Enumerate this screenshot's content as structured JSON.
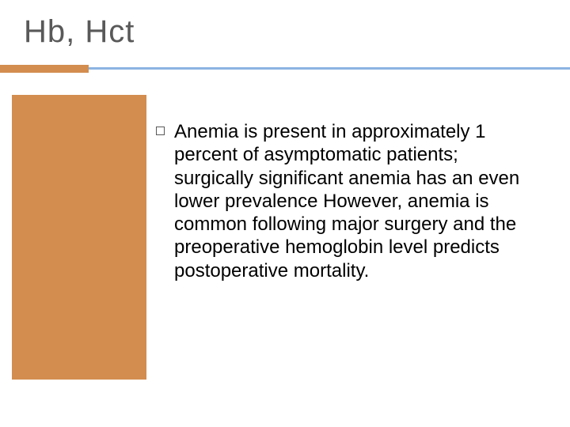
{
  "slide": {
    "title": "Hb, Hct",
    "title_color": "#595959",
    "title_fontsize": 40,
    "divider": {
      "accent_color": "#d38d4f",
      "line_color": "#8db3e2",
      "accent_width": 112
    },
    "sidebar": {
      "color": "#d38d4f",
      "width": 170
    },
    "background_color": "#ffffff",
    "body": {
      "bullets": [
        {
          "text": "Anemia is present in approximately 1 percent of asymptomatic patients; surgically significant anemia has an even lower prevalence However, anemia is common following major surgery and the preoperative hemoglobin level predicts postoperative mortality."
        }
      ],
      "bullet_marker": {
        "type": "hollow-square",
        "border_color": "#595959",
        "size": 11
      },
      "text_color": "#000000",
      "fontsize": 24,
      "line_height": 1.22
    }
  }
}
